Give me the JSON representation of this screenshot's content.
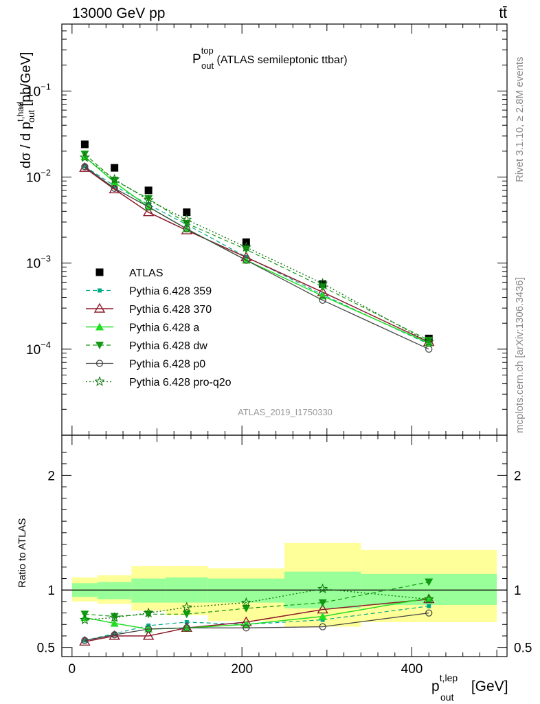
{
  "header": {
    "energy_label": "13000 GeV pp",
    "process_label": "tt̄",
    "side_label_top": "Rivet 3.1.10, ≥ 2.8M events",
    "side_label_bottom": "mcplots.cern.ch [arXiv:1306.3436]",
    "watermark": "ATLAS_2019_I1750330"
  },
  "colors": {
    "data": "#000000",
    "p359": "#00aa88",
    "p370": "#8b1a2b",
    "pa": "#22dd22",
    "pdw": "#119911",
    "p0": "#444444",
    "pq2o": "#117711",
    "band_yellow": "#ffff99",
    "band_green": "#99ff99"
  },
  "chart_data": [
    {
      "type": "scatter",
      "title_main": "P",
      "title_sup": "top",
      "title_sub": "out",
      "title_rest": " (ATLAS semileptonic ttbar)",
      "ylabel_text": "dσ / d p",
      "ylabel_sup": "t,had",
      "ylabel_sub": "out",
      "ylabel_unit": " [pb/GeV]",
      "yscale": "log",
      "xlim": [
        -12,
        512
      ],
      "ylim": [
        1e-05,
        0.6
      ],
      "y_ticks": [
        {
          "base": "10",
          "exp": "−4",
          "value": 0.0001
        },
        {
          "base": "10",
          "exp": "−3",
          "value": 0.001
        },
        {
          "base": "10",
          "exp": "−2",
          "value": 0.01
        },
        {
          "base": "10",
          "exp": "−1",
          "value": 0.1
        }
      ],
      "x": [
        15,
        50,
        90,
        135,
        205,
        295,
        420
      ],
      "series": [
        {
          "name": "ATLAS",
          "key": "data",
          "marker": "square",
          "line": "none",
          "values": [
            0.024,
            0.0128,
            0.007,
            0.0039,
            0.00175,
            0.00057,
            0.000133
          ]
        },
        {
          "name": "Pythia 6.428 359",
          "key": "p359",
          "marker": "smallsquare",
          "line": "dash",
          "values": [
            0.0133,
            0.0079,
            0.0048,
            0.0028,
            0.00118,
            0.00043,
            0.000114
          ]
        },
        {
          "name": "Pythia 6.428 370",
          "key": "p370",
          "marker": "triangle-open",
          "line": "solid",
          "values": [
            0.0128,
            0.0072,
            0.0039,
            0.0024,
            0.00117,
            0.00046,
            0.000121
          ]
        },
        {
          "name": "Pythia 6.428 a",
          "key": "pa",
          "marker": "triangle",
          "line": "solid",
          "values": [
            0.0172,
            0.0087,
            0.0045,
            0.0025,
            0.00108,
            0.000415,
            0.000118
          ]
        },
        {
          "name": "Pythia 6.428 dw",
          "key": "pdw",
          "marker": "triangle-down",
          "line": "dash",
          "values": [
            0.0185,
            0.0092,
            0.0056,
            0.0029,
            0.00144,
            0.00053,
            0.000127
          ]
        },
        {
          "name": "Pythia 6.428 p0",
          "key": "p0",
          "marker": "circle-open",
          "line": "solid",
          "values": [
            0.0132,
            0.0074,
            0.0045,
            0.0025,
            0.00108,
            0.00037,
            0.0001
          ]
        },
        {
          "name": "Pythia 6.428 pro-q2o",
          "key": "pq2o",
          "marker": "star-open",
          "line": "dot",
          "values": [
            0.0169,
            0.0094,
            0.0054,
            0.0032,
            0.00153,
            0.00058,
            0.000121
          ]
        }
      ]
    },
    {
      "type": "scatter",
      "ylabel": "Ratio to ATLAS",
      "xlabel_main": "p",
      "xlabel_sup": "t,lep",
      "xlabel_sub": "out",
      "xlabel_unit": " [GeV]",
      "xlim": [
        -12,
        512
      ],
      "ylim": [
        0.42,
        2.35
      ],
      "x_ticks": [
        "0",
        "200",
        "400"
      ],
      "x_tick_values": [
        0,
        200,
        400
      ],
      "y_ticks": [
        "0.5",
        "1",
        "2"
      ],
      "y_tick_values": [
        0.5,
        1,
        2
      ],
      "bins": [
        [
          0,
          30
        ],
        [
          30,
          70
        ],
        [
          70,
          110
        ],
        [
          110,
          160
        ],
        [
          160,
          250
        ],
        [
          250,
          340
        ],
        [
          340,
          500
        ]
      ],
      "band_green": [
        [
          0.94,
          1.06
        ],
        [
          0.92,
          1.07
        ],
        [
          0.89,
          1.1
        ],
        [
          0.89,
          1.11
        ],
        [
          0.89,
          1.1
        ],
        [
          0.84,
          1.16
        ],
        [
          0.87,
          1.14
        ]
      ],
      "band_yellow": [
        [
          0.9,
          1.11
        ],
        [
          0.88,
          1.13
        ],
        [
          0.82,
          1.21
        ],
        [
          0.78,
          1.21
        ],
        [
          0.73,
          1.19
        ],
        [
          0.68,
          1.41
        ],
        [
          0.72,
          1.35
        ]
      ],
      "x": [
        15,
        50,
        90,
        135,
        205,
        295,
        420
      ],
      "series": [
        {
          "name": "Pythia 6.428 359",
          "key": "p359",
          "values": [
            0.56,
            0.62,
            0.69,
            0.72,
            0.7,
            0.74,
            0.86
          ]
        },
        {
          "name": "Pythia 6.428 370",
          "key": "p370",
          "values": [
            0.55,
            0.6,
            0.6,
            0.67,
            0.72,
            0.83,
            0.92
          ]
        },
        {
          "name": "Pythia 6.428 a",
          "key": "pa",
          "values": [
            0.76,
            0.71,
            0.66,
            0.67,
            0.7,
            0.77,
            0.93
          ]
        },
        {
          "name": "Pythia 6.428 dw",
          "key": "pdw",
          "values": [
            0.79,
            0.77,
            0.79,
            0.79,
            0.84,
            0.89,
            1.07
          ]
        },
        {
          "name": "Pythia 6.428 p0",
          "key": "p0",
          "values": [
            0.56,
            0.61,
            0.66,
            0.67,
            0.67,
            0.68,
            0.8
          ]
        },
        {
          "name": "Pythia 6.428 pro-q2o",
          "key": "pq2o",
          "values": [
            0.74,
            0.76,
            0.8,
            0.85,
            0.89,
            1.01,
            0.92
          ]
        }
      ]
    }
  ]
}
